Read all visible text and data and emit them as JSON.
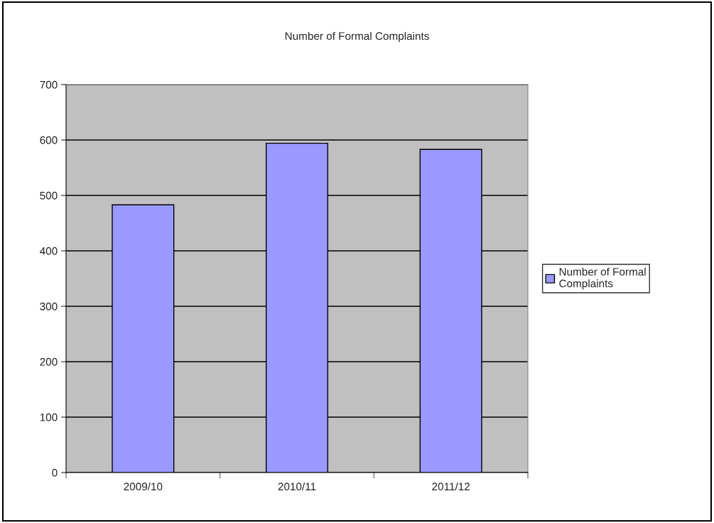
{
  "chart_data": {
    "type": "bar",
    "title": "Number of Formal Complaints",
    "categories": [
      "2009/10",
      "2010/11",
      "2011/12"
    ],
    "series": [
      {
        "name": "Number of Formal Complaints",
        "color": "#9999ff",
        "values": [
          483,
          594,
          583
        ]
      }
    ],
    "ylim": [
      0,
      700
    ],
    "yticks": [
      0,
      100,
      200,
      300,
      400,
      500,
      600,
      700
    ],
    "grid": "y",
    "legend": "right"
  }
}
